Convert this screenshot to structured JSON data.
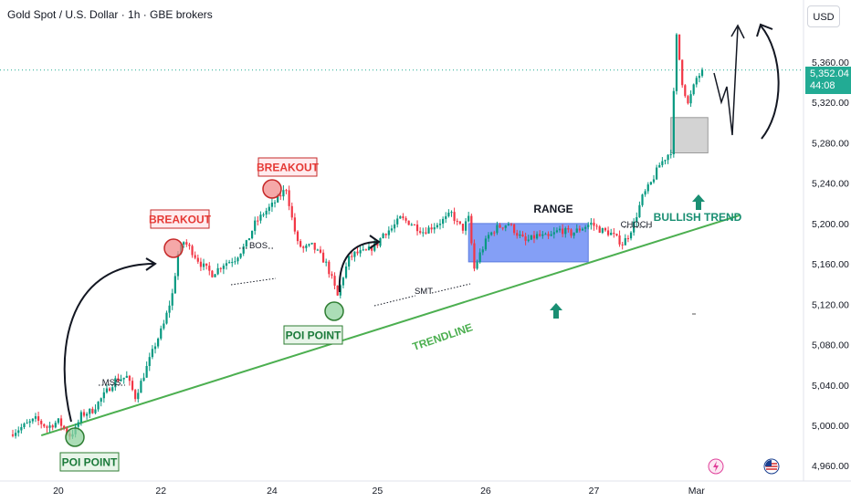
{
  "header": {
    "title": "Gold Spot / U.S. Dollar · 1h · GBE brokers"
  },
  "currency": "USD",
  "current_price": {
    "value": "5,352.04",
    "countdown": "44:08"
  },
  "colors": {
    "up": "#089981",
    "down": "#f23645",
    "trendline": "#4caf50",
    "range_box": "#6f8ef5",
    "accent_green": "#1a8f73"
  },
  "icons": {
    "lightning": "lightning-icon",
    "flag": "us-flag-icon"
  },
  "chart_data": {
    "type": "candlestick",
    "title": "Gold Spot / U.S. Dollar · 1h · GBE brokers",
    "x_ticks": [
      "20",
      "22",
      "24",
      "25",
      "26",
      "27",
      "Mar"
    ],
    "y_ticks": [
      "5,360.00",
      "5,320.00",
      "5,280.00",
      "5,240.00",
      "5,200.00",
      "5,160.00",
      "5,120.00",
      "5,080.00",
      "5,040.00",
      "5,000.00",
      "4,960.00"
    ],
    "ylim": [
      4950,
      5400
    ],
    "y_tick_values": [
      5360,
      5320,
      5280,
      5240,
      5200,
      5160,
      5120,
      5080,
      5040,
      5000,
      4960
    ],
    "last_price": 5352.04,
    "anchor_closes": [
      [
        0,
        4993
      ],
      [
        8,
        5006
      ],
      [
        12,
        4998
      ],
      [
        16,
        5004
      ],
      [
        20,
        4990
      ],
      [
        22,
        4996
      ],
      [
        24,
        5010
      ],
      [
        28,
        5015
      ],
      [
        32,
        5030
      ],
      [
        36,
        5045
      ],
      [
        40,
        5048
      ],
      [
        43,
        5028
      ],
      [
        46,
        5050
      ],
      [
        50,
        5080
      ],
      [
        53,
        5100
      ],
      [
        56,
        5130
      ],
      [
        58,
        5170
      ],
      [
        60,
        5182
      ],
      [
        62,
        5176
      ],
      [
        64,
        5168
      ],
      [
        66,
        5160
      ],
      [
        70,
        5150
      ],
      [
        74,
        5160
      ],
      [
        78,
        5165
      ],
      [
        82,
        5180
      ],
      [
        85,
        5200
      ],
      [
        88,
        5210
      ],
      [
        91,
        5218
      ],
      [
        94,
        5228
      ],
      [
        96,
        5235
      ],
      [
        98,
        5205
      ],
      [
        100,
        5180
      ],
      [
        102,
        5175
      ],
      [
        105,
        5178
      ],
      [
        108,
        5168
      ],
      [
        110,
        5160
      ],
      [
        112,
        5145
      ],
      [
        114,
        5128
      ],
      [
        116,
        5148
      ],
      [
        118,
        5165
      ],
      [
        120,
        5170
      ],
      [
        124,
        5172
      ],
      [
        128,
        5180
      ],
      [
        130,
        5190
      ],
      [
        133,
        5195
      ],
      [
        136,
        5205
      ],
      [
        140,
        5200
      ],
      [
        144,
        5192
      ],
      [
        148,
        5198
      ],
      [
        152,
        5205
      ],
      [
        154,
        5210
      ],
      [
        156,
        5200
      ],
      [
        158,
        5195
      ],
      [
        160,
        5205
      ],
      [
        162,
        5155
      ],
      [
        164,
        5170
      ],
      [
        167,
        5188
      ],
      [
        170,
        5196
      ],
      [
        174,
        5200
      ],
      [
        177,
        5190
      ],
      [
        180,
        5182
      ],
      [
        184,
        5188
      ],
      [
        188,
        5186
      ],
      [
        192,
        5194
      ],
      [
        196,
        5190
      ],
      [
        200,
        5196
      ],
      [
        203,
        5200
      ],
      [
        206,
        5194
      ],
      [
        210,
        5190
      ],
      [
        214,
        5180
      ],
      [
        216,
        5188
      ],
      [
        218,
        5200
      ],
      [
        221,
        5226
      ],
      [
        224,
        5240
      ],
      [
        227,
        5258
      ],
      [
        229,
        5265
      ],
      [
        231,
        5272
      ],
      [
        233,
        5385
      ],
      [
        235,
        5340
      ],
      [
        237,
        5318
      ],
      [
        240,
        5344
      ],
      [
        242,
        5350
      ]
    ],
    "annotations": [
      {
        "label": "POI POINT",
        "style": "green-box"
      },
      {
        "label": "MSS",
        "style": "text"
      },
      {
        "label": "BREAKOUT",
        "style": "red-box"
      },
      {
        "label": "BOS",
        "style": "text"
      },
      {
        "label": "BREAKOUT",
        "style": "red-box"
      },
      {
        "label": "POI POINT",
        "style": "green-box"
      },
      {
        "label": "SMT",
        "style": "text"
      },
      {
        "label": "TRENDLINE",
        "style": "green-text"
      },
      {
        "label": "RANGE",
        "style": "text"
      },
      {
        "label": "CHOCH",
        "style": "text"
      },
      {
        "label": "BULLISH TREND",
        "style": "green-text"
      }
    ],
    "trendline": {
      "from": [
        10,
        4990
      ],
      "to": [
        255,
        5208
      ]
    },
    "range_box": {
      "x": [
        160,
        202
      ],
      "y": [
        5162,
        5200
      ]
    },
    "target_box": {
      "x": [
        231,
        244
      ],
      "y": [
        5270,
        5305
      ]
    }
  }
}
